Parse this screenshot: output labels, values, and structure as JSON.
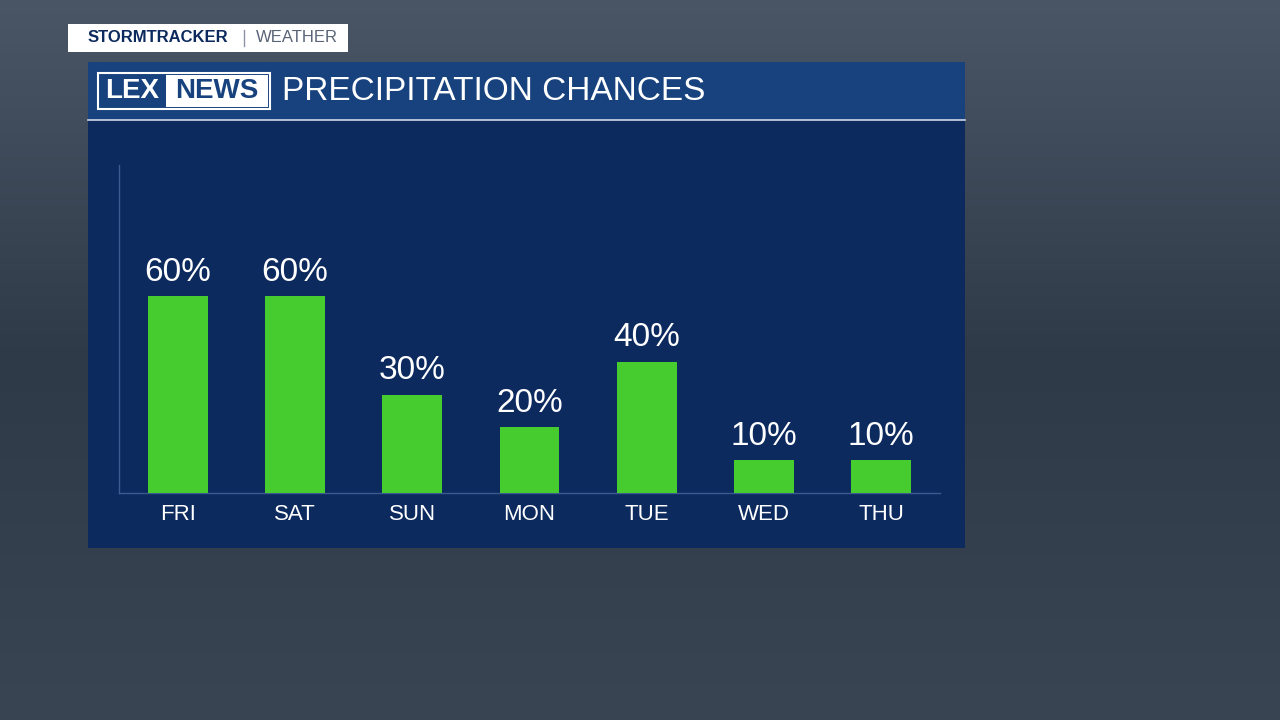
{
  "chart_data": {
    "type": "bar",
    "title": "PRECIPITATION CHANCES",
    "categories": [
      "FRI",
      "SAT",
      "SUN",
      "MON",
      "TUE",
      "WED",
      "THU"
    ],
    "values": [
      60,
      60,
      30,
      20,
      40,
      10,
      10
    ],
    "value_labels": [
      "60%",
      "60%",
      "30%",
      "20%",
      "40%",
      "10%",
      "10%"
    ],
    "color": "#46cc2e",
    "ylim": [
      0,
      100
    ],
    "data_labels": true,
    "tick_labels": "x",
    "grid": false
  },
  "banner": {
    "label": "STORMTRACKER",
    "section": "WEATHER"
  },
  "logo": {
    "left": "LEX",
    "right": "NEWS"
  }
}
